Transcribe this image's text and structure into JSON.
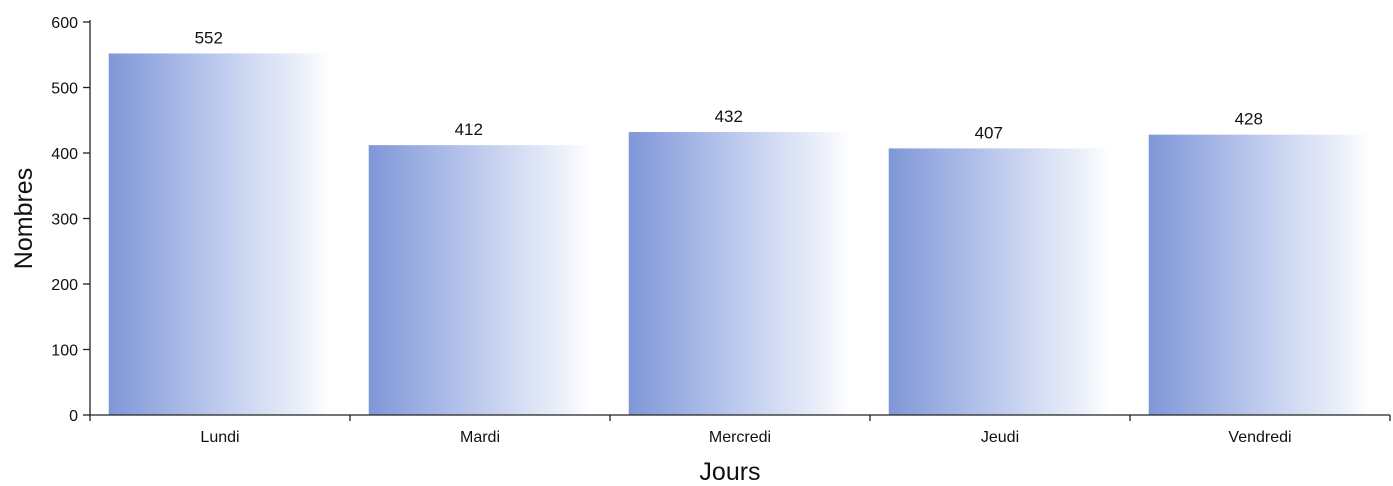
{
  "chart_data": {
    "type": "bar",
    "categories": [
      "Lundi",
      "Mardi",
      "Mercredi",
      "Jeudi",
      "Vendredi"
    ],
    "values": [
      552,
      412,
      432,
      407,
      428
    ],
    "data_labels": [
      "552",
      "412",
      "432",
      "407",
      "428"
    ],
    "title": "",
    "xlabel": "Jours",
    "ylabel": "Nombres",
    "ylim": [
      0,
      600
    ],
    "yticks": [
      "0",
      "100",
      "200",
      "300",
      "400",
      "500",
      "600"
    ],
    "grid": false,
    "legend": "none",
    "colors": {
      "bar_dark": "#7f97d8",
      "bar_light": "#ffffff",
      "axis": "#222222",
      "text": "#111111"
    }
  }
}
